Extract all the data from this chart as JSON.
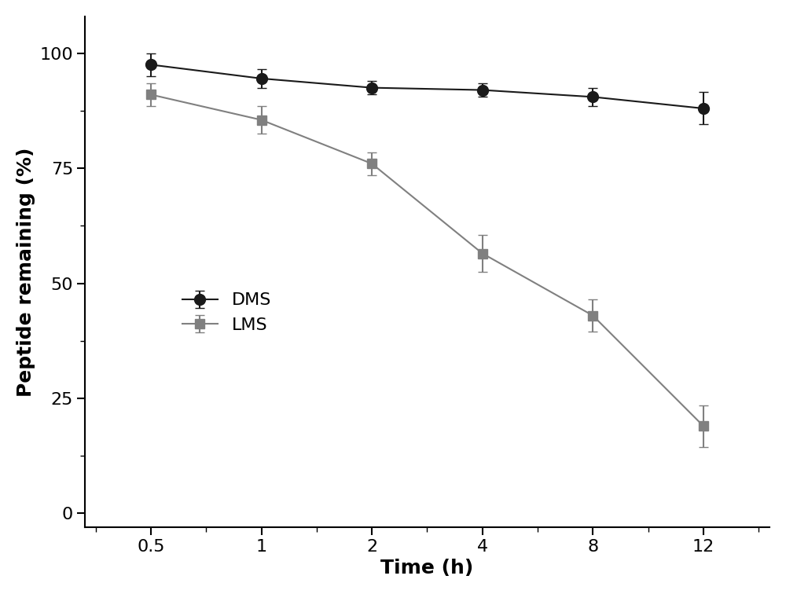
{
  "x": [
    0.5,
    1,
    2,
    4,
    8,
    12
  ],
  "x_positions": [
    1,
    2,
    3,
    4,
    5,
    6
  ],
  "dms_y": [
    97.5,
    94.5,
    92.5,
    92.0,
    90.5,
    88.0
  ],
  "dms_yerr": [
    2.5,
    2.0,
    1.5,
    1.5,
    2.0,
    3.5
  ],
  "lms_y": [
    91.0,
    85.5,
    76.0,
    56.5,
    43.0,
    19.0
  ],
  "lms_yerr": [
    2.5,
    3.0,
    2.5,
    4.0,
    3.5,
    4.5
  ],
  "dms_color": "#1a1a1a",
  "lms_color": "#808080",
  "dms_label": "DMS",
  "lms_label": "LMS",
  "xlabel": "Time (h)",
  "ylabel": "Peptide remaining (%)",
  "yticks": [
    0,
    25,
    50,
    75,
    100
  ],
  "xtick_labels": [
    "0.5",
    "1",
    "2",
    "4",
    "8",
    "12"
  ],
  "xlim": [
    0.4,
    6.6
  ],
  "ylim": [
    -3,
    108
  ],
  "background_color": "#ffffff",
  "linewidth": 1.5,
  "markersize": 10,
  "capsize": 4,
  "elinewidth": 1.5,
  "legend_fontsize": 16,
  "axis_label_fontsize": 18,
  "tick_label_fontsize": 16
}
